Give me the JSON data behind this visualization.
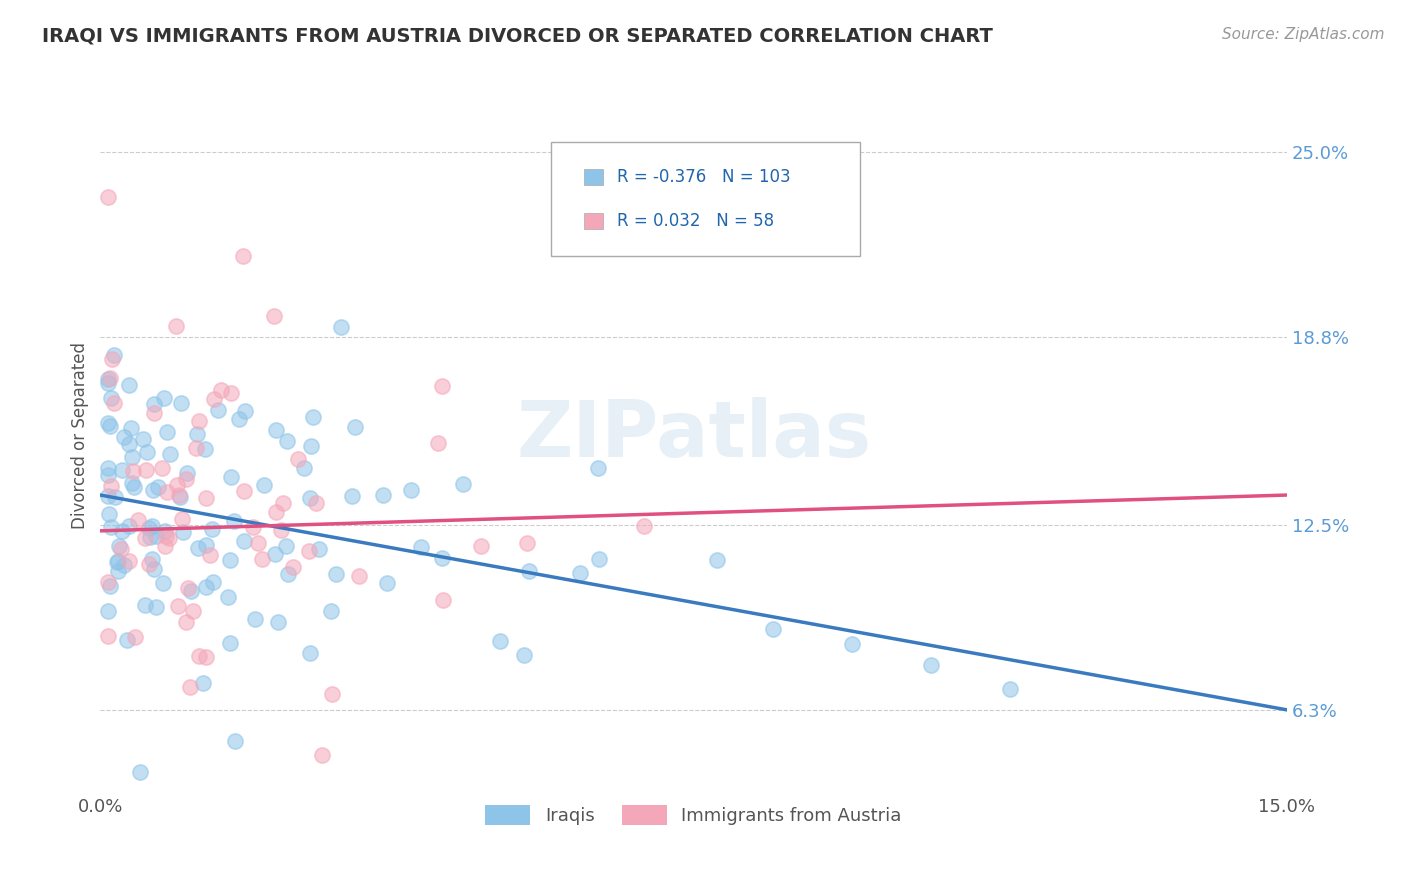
{
  "title": "IRAQI VS IMMIGRANTS FROM AUSTRIA DIVORCED OR SEPARATED CORRELATION CHART",
  "source": "Source: ZipAtlas.com",
  "ylabel": "Divorced or Separated",
  "legend_label1": "Iraqis",
  "legend_label2": "Immigrants from Austria",
  "legend_r1": "-0.376",
  "legend_n1": "103",
  "legend_r2": "0.032",
  "legend_n2": "58",
  "xmin": 0.0,
  "xmax": 0.15,
  "ymin": 0.035,
  "ymax": 0.275,
  "yticks": [
    0.063,
    0.125,
    0.188,
    0.25
  ],
  "ytick_labels": [
    "6.3%",
    "12.5%",
    "18.8%",
    "25.0%"
  ],
  "xticks": [
    0.0,
    0.15
  ],
  "xtick_labels": [
    "0.0%",
    "15.0%"
  ],
  "color_iraqis": "#8ec4e8",
  "color_austria": "#f4a7b9",
  "trendline_iraqis": "#3a7bbf",
  "trendline_austria": "#e05080",
  "background_color": "#ffffff",
  "grid_color": "#cccccc",
  "watermark": "ZIPatlas",
  "trendline_iraqis_x0": 0.0,
  "trendline_iraqis_y0": 0.135,
  "trendline_iraqis_x1": 0.15,
  "trendline_iraqis_y1": 0.063,
  "trendline_austria_x0": 0.0,
  "trendline_austria_y0": 0.123,
  "trendline_austria_x1": 0.15,
  "trendline_austria_y1": 0.135
}
